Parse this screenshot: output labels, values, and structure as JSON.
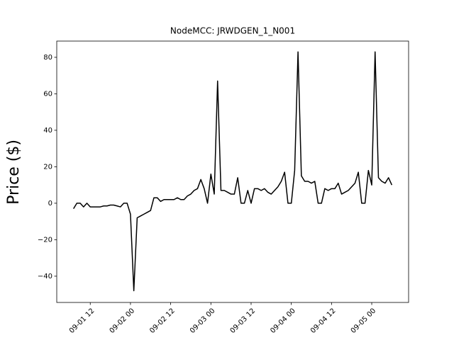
{
  "chart_data": {
    "type": "line",
    "title": "NodeMCC: JRWDGEN_1_N001",
    "y_label": "Price ($)",
    "color": "#000000",
    "x": [
      "09-01 07",
      "09-01 08",
      "09-01 09",
      "09-01 10",
      "09-01 11",
      "09-01 12",
      "09-01 13",
      "09-01 14",
      "09-01 15",
      "09-01 16",
      "09-01 17",
      "09-01 18",
      "09-01 19",
      "09-01 20",
      "09-01 21",
      "09-01 22",
      "09-01 23",
      "09-02 00",
      "09-02 01",
      "09-02 02",
      "09-02 03",
      "09-02 04",
      "09-02 05",
      "09-02 06",
      "09-02 07",
      "09-02 08",
      "09-02 09",
      "09-02 10",
      "09-02 11",
      "09-02 12",
      "09-02 13",
      "09-02 14",
      "09-02 15",
      "09-02 16",
      "09-02 17",
      "09-02 18",
      "09-02 19",
      "09-02 20",
      "09-02 21",
      "09-02 22",
      "09-02 23",
      "09-03 00",
      "09-03 01",
      "09-03 02",
      "09-03 03",
      "09-03 04",
      "09-03 05",
      "09-03 06",
      "09-03 07",
      "09-03 08",
      "09-03 09",
      "09-03 10",
      "09-03 11",
      "09-03 12",
      "09-03 13",
      "09-03 14",
      "09-03 15",
      "09-03 16",
      "09-03 17",
      "09-03 18",
      "09-03 19",
      "09-03 20",
      "09-03 21",
      "09-03 22",
      "09-03 23",
      "09-04 00",
      "09-04 01",
      "09-04 02",
      "09-04 03",
      "09-04 04",
      "09-04 05",
      "09-04 06",
      "09-04 07",
      "09-04 08",
      "09-04 09",
      "09-04 10",
      "09-04 11",
      "09-04 12",
      "09-04 13",
      "09-04 14",
      "09-04 15",
      "09-04 16",
      "09-04 17",
      "09-04 18",
      "09-04 19",
      "09-04 20",
      "09-04 21",
      "09-04 22",
      "09-04 23",
      "09-05 00",
      "09-05 01",
      "09-05 02",
      "09-05 03",
      "09-05 04",
      "09-05 05",
      "09-05 06"
    ],
    "values": [
      -3,
      0,
      0,
      -2,
      0,
      -2,
      -2,
      -2,
      -2,
      -1.5,
      -1.5,
      -1,
      -1,
      -1.5,
      -2,
      0,
      0,
      -6,
      -48,
      -8,
      -7,
      -6,
      -5,
      -4,
      3,
      3,
      1,
      2,
      2,
      2,
      2,
      3,
      2,
      2,
      4,
      5,
      7,
      8,
      13,
      8,
      0,
      16,
      5,
      67,
      7,
      7,
      6,
      5,
      5,
      14,
      0,
      0,
      7,
      0,
      8,
      8,
      7,
      8,
      6,
      5,
      7,
      9,
      12,
      17,
      0,
      0,
      18,
      83,
      15,
      12,
      12,
      11,
      12,
      0,
      0,
      8,
      7,
      8,
      8,
      11,
      5,
      6,
      7,
      9,
      11,
      17,
      0,
      0,
      18,
      10,
      83,
      14,
      12,
      11,
      14,
      10
    ],
    "xlim": [
      "09-01 02",
      "09-05 11"
    ],
    "xticks": [
      "09-01 12",
      "09-02 00",
      "09-02 12",
      "09-03 00",
      "09-03 12",
      "09-04 00",
      "09-04 12",
      "09-05 00"
    ],
    "ylim": [
      -54.4,
      88.9
    ],
    "yticks": [
      {
        "value": -40,
        "label": "−40"
      },
      {
        "value": -20,
        "label": "−20"
      },
      0,
      20,
      40,
      60,
      80
    ]
  }
}
